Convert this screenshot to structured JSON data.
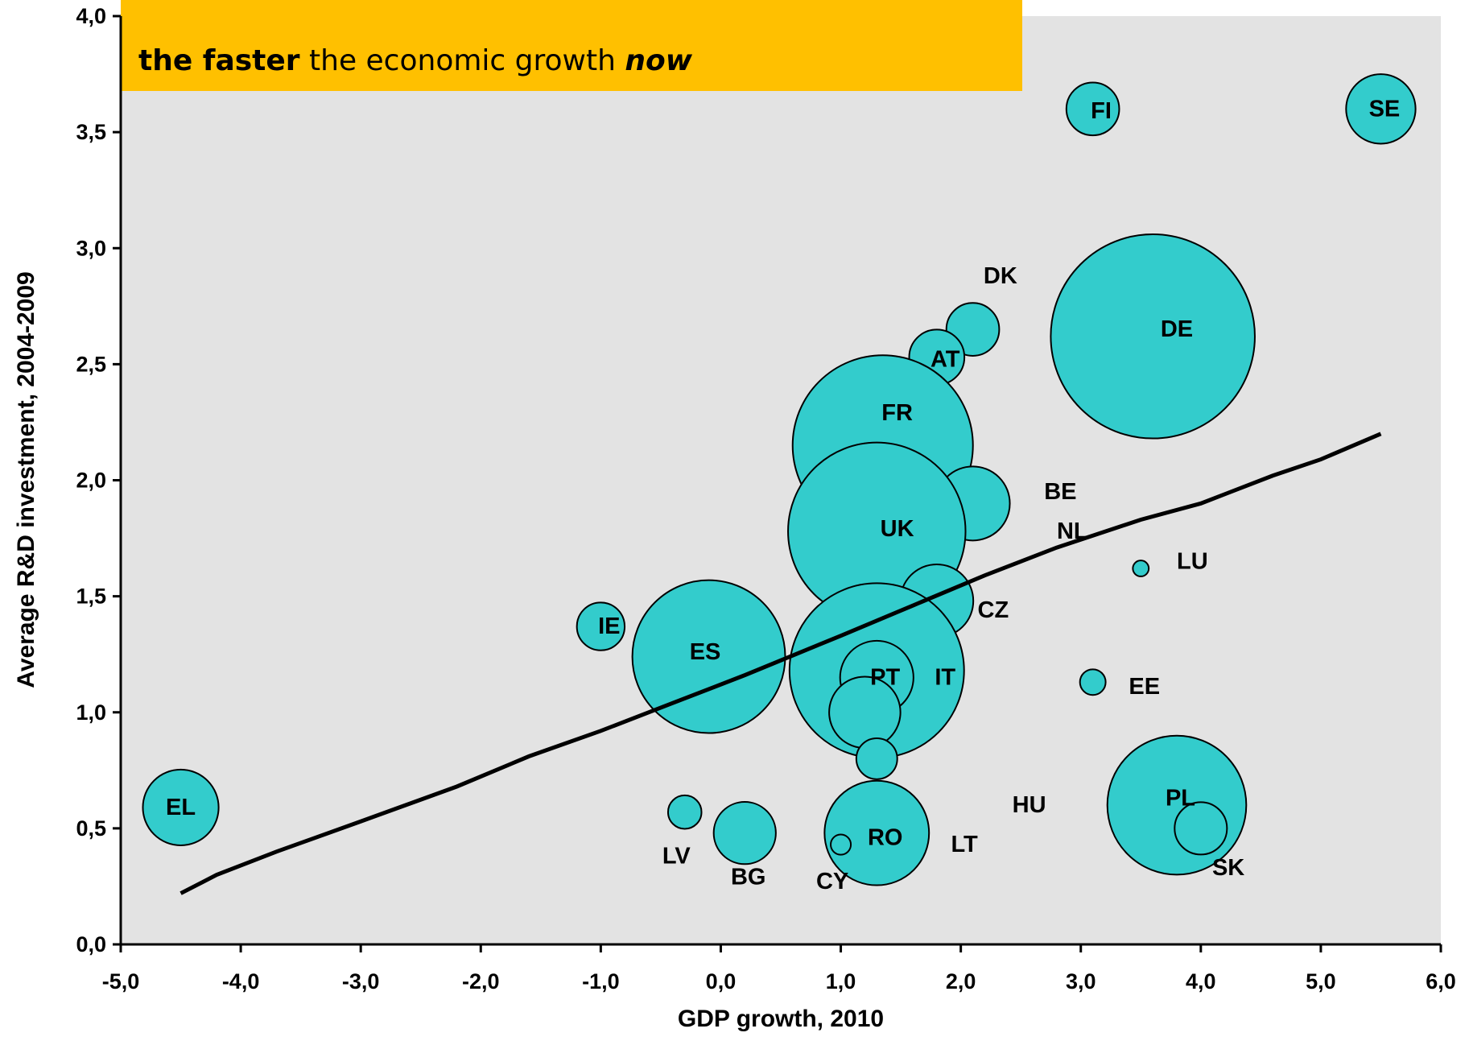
{
  "banner": {
    "bold": "the faster",
    "middle": " the economic growth ",
    "emph": "now",
    "color": "#FFC000"
  },
  "chart_data": {
    "type": "scatter",
    "subtype": "bubble",
    "title": "",
    "xlabel": "GDP growth, 2010",
    "ylabel": "Average R&D investment, 2004-2009",
    "xlim": [
      -5.0,
      6.0
    ],
    "ylim": [
      0.0,
      4.0
    ],
    "xticks": [
      "-5,0",
      "-4,0",
      "-3,0",
      "-2,0",
      "-1,0",
      "0,0",
      "1,0",
      "2,0",
      "3,0",
      "4,0",
      "5,0",
      "6,0"
    ],
    "yticks": [
      "0,0",
      "0,5",
      "1,0",
      "1,5",
      "2,0",
      "2,5",
      "3,0",
      "3,5",
      "4,0"
    ],
    "grid": false,
    "plot_background": "#E3E3E3",
    "bubble_color": "#33CCCC",
    "points": [
      {
        "label": "FI",
        "x": 3.1,
        "y": 3.6,
        "size": 5.5
      },
      {
        "label": "SE",
        "x": 5.5,
        "y": 3.6,
        "size": 9.5
      },
      {
        "label": "DK",
        "x": 2.1,
        "y": 2.65,
        "size": 5.5
      },
      {
        "label": "AT",
        "x": 1.8,
        "y": 2.53,
        "size": 6.0
      },
      {
        "label": "DE",
        "x": 3.6,
        "y": 2.62,
        "size": 82.0
      },
      {
        "label": "FR",
        "x": 1.35,
        "y": 2.15,
        "size": 64.0
      },
      {
        "label": "BE",
        "x": 2.1,
        "y": 1.9,
        "size": 10.8
      },
      {
        "label": "NL",
        "x": 1.6,
        "y": 1.85,
        "size": 16.5
      },
      {
        "label": "UK",
        "x": 1.3,
        "y": 1.78,
        "size": 62.0
      },
      {
        "label": "LU",
        "x": 3.5,
        "y": 1.62,
        "size": 0.5
      },
      {
        "label": "CZ",
        "x": 1.8,
        "y": 1.48,
        "size": 10.5
      },
      {
        "label": "IE",
        "x": -1.0,
        "y": 1.37,
        "size": 4.5
      },
      {
        "label": "ES",
        "x": -0.1,
        "y": 1.24,
        "size": 46.0
      },
      {
        "label": "IT",
        "x": 1.3,
        "y": 1.18,
        "size": 60.0
      },
      {
        "label": "PT",
        "x": 1.3,
        "y": 1.15,
        "size": 10.6
      },
      {
        "label": "EE",
        "x": 3.1,
        "y": 1.13,
        "size": 1.3
      },
      {
        "label": "HU",
        "x": 1.2,
        "y": 1.0,
        "size": 10.0
      },
      {
        "label": "LT",
        "x": 1.3,
        "y": 0.8,
        "size": 3.3
      },
      {
        "label": "EL",
        "x": -4.5,
        "y": 0.59,
        "size": 11.3
      },
      {
        "label": "PL",
        "x": 3.8,
        "y": 0.6,
        "size": 38.0
      },
      {
        "label": "LV",
        "x": -0.3,
        "y": 0.57,
        "size": 2.2
      },
      {
        "label": "BG",
        "x": 0.2,
        "y": 0.48,
        "size": 7.6
      },
      {
        "label": "RO",
        "x": 1.3,
        "y": 0.48,
        "size": 21.5
      },
      {
        "label": "CY",
        "x": 1.0,
        "y": 0.43,
        "size": 0.8
      },
      {
        "label": "SK",
        "x": 4.0,
        "y": 0.5,
        "size": 5.4
      }
    ],
    "labels": [
      {
        "text": "FI",
        "x": 3.17,
        "y": 3.59
      },
      {
        "text": "SE",
        "x": 5.53,
        "y": 3.6
      },
      {
        "text": "DK",
        "x": 2.33,
        "y": 2.88
      },
      {
        "text": "AT",
        "x": 1.87,
        "y": 2.52
      },
      {
        "text": "DE",
        "x": 3.8,
        "y": 2.65
      },
      {
        "text": "FR",
        "x": 1.47,
        "y": 2.29
      },
      {
        "text": "BE",
        "x": 2.83,
        "y": 1.95
      },
      {
        "text": "NL",
        "x": 2.93,
        "y": 1.78
      },
      {
        "text": "UK",
        "x": 1.47,
        "y": 1.79
      },
      {
        "text": "LU",
        "x": 3.93,
        "y": 1.65
      },
      {
        "text": "CZ",
        "x": 2.27,
        "y": 1.44
      },
      {
        "text": "IE",
        "x": -0.93,
        "y": 1.37
      },
      {
        "text": "ES",
        "x": -0.13,
        "y": 1.26
      },
      {
        "text": "IT",
        "x": 1.87,
        "y": 1.15
      },
      {
        "text": "PT",
        "x": 1.37,
        "y": 1.15
      },
      {
        "text": "EE",
        "x": 3.53,
        "y": 1.11
      },
      {
        "text": "HU",
        "x": 2.57,
        "y": 0.6
      },
      {
        "text": "LT",
        "x": 2.03,
        "y": 0.43
      },
      {
        "text": "EL",
        "x": -4.5,
        "y": 0.59
      },
      {
        "text": "PL",
        "x": 3.83,
        "y": 0.63
      },
      {
        "text": "LV",
        "x": -0.37,
        "y": 0.38
      },
      {
        "text": "BG",
        "x": 0.23,
        "y": 0.29
      },
      {
        "text": "CY",
        "x": 0.93,
        "y": 0.27
      },
      {
        "text": "RO",
        "x": 1.37,
        "y": 0.46
      },
      {
        "text": "SK",
        "x": 4.23,
        "y": 0.33
      }
    ],
    "trend_line": {
      "x": [
        -4.5,
        -4.2,
        -3.7,
        -3.0,
        -2.2,
        -1.6,
        -1.0,
        -0.4,
        0.2,
        1.0,
        1.6,
        2.2,
        2.8,
        3.5,
        4.0,
        4.6,
        5.0,
        5.5
      ],
      "y": [
        0.22,
        0.3,
        0.4,
        0.53,
        0.68,
        0.81,
        0.92,
        1.04,
        1.16,
        1.33,
        1.46,
        1.59,
        1.71,
        1.83,
        1.9,
        2.02,
        2.09,
        2.2
      ],
      "color": "#000000"
    }
  }
}
